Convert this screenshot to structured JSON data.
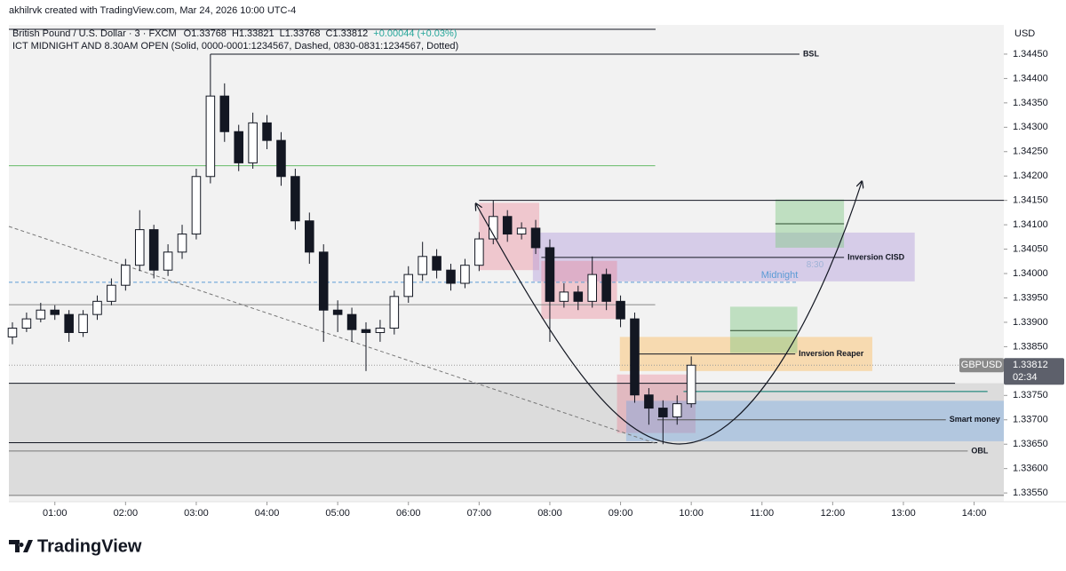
{
  "header": {
    "credit": "akhilrvk created with TradingView.com, Mar 24, 2026 10:00 UTC-4",
    "symbol": "British Pound / U.S. Dollar · 3 · FXCM",
    "ohlc": [
      "O1.33768",
      "H1.33821",
      "L1.33768",
      "C1.33812"
    ],
    "change": "+0.00044 (+0.03%)",
    "indicator": "ICT MIDNIGHT AND 8.30AM OPEN (Solid, 0000-0001:1234567, Dashed, 0830-0831:1234567, Dotted)"
  },
  "footer": {
    "brand": "TradingView"
  },
  "chart_data": {
    "type": "candlestick",
    "currency": "USD",
    "up_color": "#ffffff",
    "down_color": "#131722",
    "x": [
      0.4,
      0.6,
      0.8,
      1.0,
      1.2,
      1.4,
      1.6,
      1.8,
      2.0,
      2.2,
      2.4,
      2.6,
      2.8,
      3.0,
      3.2,
      3.4,
      3.6,
      3.8,
      4.0,
      4.2,
      4.4,
      4.6,
      4.8,
      5.0,
      5.2,
      5.4,
      5.6,
      5.8,
      6.0,
      6.2,
      6.4,
      6.6,
      6.8,
      7.0,
      7.2,
      7.4,
      7.6,
      7.8,
      8.0,
      8.2,
      8.4,
      8.6,
      8.8,
      9.0,
      9.2,
      9.4,
      9.6,
      9.8,
      10.0
    ],
    "open": [
      1.3387,
      1.33888,
      1.33907,
      1.33925,
      1.33916,
      1.33879,
      1.33916,
      1.33943,
      1.33976,
      1.34017,
      1.3409,
      1.34007,
      1.34044,
      1.34081,
      1.34199,
      1.34364,
      1.34291,
      1.34227,
      1.34309,
      1.34273,
      1.34199,
      1.34108,
      1.34044,
      1.33925,
      1.33916,
      1.33885,
      1.33879,
      1.33888,
      1.33953,
      1.33998,
      1.34035,
      1.34007,
      1.3398,
      1.34017,
      1.34071,
      1.34117,
      1.34081,
      1.34093,
      1.34053,
      1.33943,
      1.33962,
      1.33943,
      1.33998,
      1.33943,
      1.33907,
      1.33751,
      1.33724,
      1.33706,
      1.33733
    ],
    "high": [
      1.339,
      1.3392,
      1.3394,
      1.33935,
      1.33925,
      1.33925,
      1.33955,
      1.3399,
      1.3403,
      1.3413,
      1.341,
      1.3406,
      1.341,
      1.34215,
      1.3445,
      1.3439,
      1.34305,
      1.3433,
      1.34325,
      1.3429,
      1.34215,
      1.34125,
      1.3406,
      1.33945,
      1.3393,
      1.339,
      1.33905,
      1.33965,
      1.34015,
      1.34065,
      1.3405,
      1.3402,
      1.3403,
      1.34085,
      1.3415,
      1.3413,
      1.34105,
      1.3411,
      1.3407,
      1.3398,
      1.33975,
      1.34035,
      1.3401,
      1.33955,
      1.3392,
      1.33765,
      1.3374,
      1.3375,
      1.3383
    ],
    "low": [
      1.33855,
      1.3388,
      1.339,
      1.33905,
      1.3386,
      1.3387,
      1.33905,
      1.33935,
      1.33965,
      1.34005,
      1.3399,
      1.33995,
      1.3403,
      1.3407,
      1.34185,
      1.3427,
      1.3421,
      1.34215,
      1.34255,
      1.3418,
      1.3409,
      1.3402,
      1.3386,
      1.3388,
      1.3386,
      1.338,
      1.3386,
      1.33875,
      1.3394,
      1.33985,
      1.3399,
      1.33965,
      1.3397,
      1.34005,
      1.3406,
      1.34065,
      1.3407,
      1.3404,
      1.3386,
      1.3393,
      1.33925,
      1.3393,
      1.33925,
      1.3389,
      1.33735,
      1.3369,
      1.3365,
      1.3369,
      1.33725
    ],
    "close": [
      1.33888,
      1.33907,
      1.33925,
      1.33916,
      1.33879,
      1.33916,
      1.33943,
      1.33976,
      1.34017,
      1.3409,
      1.34007,
      1.34044,
      1.34081,
      1.34199,
      1.34364,
      1.34291,
      1.34227,
      1.34309,
      1.34273,
      1.34199,
      1.34108,
      1.34044,
      1.33925,
      1.33916,
      1.33885,
      1.33879,
      1.33888,
      1.33953,
      1.33998,
      1.34035,
      1.34007,
      1.3398,
      1.34017,
      1.34071,
      1.34117,
      1.34081,
      1.34093,
      1.34053,
      1.33943,
      1.33962,
      1.33943,
      1.33998,
      1.33943,
      1.33907,
      1.33751,
      1.33724,
      1.33706,
      1.33733,
      1.33812
    ],
    "xlim": [
      0.35,
      14.42
    ],
    "xticks": [
      {
        "value": 1,
        "label": "01:00"
      },
      {
        "value": 2,
        "label": "02:00"
      },
      {
        "value": 3,
        "label": "03:00"
      },
      {
        "value": 4,
        "label": "04:00"
      },
      {
        "value": 5,
        "label": "05:00"
      },
      {
        "value": 6,
        "label": "06:00"
      },
      {
        "value": 7,
        "label": "07:00"
      },
      {
        "value": 8,
        "label": "08:00"
      },
      {
        "value": 9,
        "label": "09:00"
      },
      {
        "value": 10,
        "label": "10:00"
      },
      {
        "value": 11,
        "label": "11:00"
      },
      {
        "value": 12,
        "label": "12:00"
      },
      {
        "value": 13,
        "label": "13:00"
      },
      {
        "value": 14,
        "label": "14:00"
      }
    ],
    "ylim": [
      1.33532,
      1.3451
    ],
    "yticks": [
      {
        "value": 1.3355,
        "label": "1.33550"
      },
      {
        "value": 1.336,
        "label": "1.33600"
      },
      {
        "value": 1.3365,
        "label": "1.33650"
      },
      {
        "value": 1.337,
        "label": "1.33700"
      },
      {
        "value": 1.3375,
        "label": "1.33750"
      },
      {
        "value": 1.338,
        "label": "1.33800"
      },
      {
        "value": 1.3385,
        "label": "1.33850"
      },
      {
        "value": 1.339,
        "label": "1.33900"
      },
      {
        "value": 1.3395,
        "label": "1.33950"
      },
      {
        "value": 1.34,
        "label": "1.34000"
      },
      {
        "value": 1.3405,
        "label": "1.34050"
      },
      {
        "value": 1.341,
        "label": "1.34100"
      },
      {
        "value": 1.3415,
        "label": "1.34150"
      },
      {
        "value": 1.342,
        "label": "1.34200"
      },
      {
        "value": 1.3425,
        "label": "1.34250"
      },
      {
        "value": 1.343,
        "label": "1.34300"
      },
      {
        "value": 1.3435,
        "label": "1.34350"
      },
      {
        "value": 1.344,
        "label": "1.34400"
      },
      {
        "value": 1.3445,
        "label": "1.34450"
      }
    ],
    "zones": [
      {
        "x": [
          0.35,
          14.42
        ],
        "y": [
          1.33545,
          1.33775
        ],
        "color": "rgba(180,180,180,0.35)"
      },
      {
        "x": [
          7.0,
          7.85
        ],
        "y": [
          1.34007,
          1.34145
        ],
        "color": "rgba(235,120,140,0.35)"
      },
      {
        "x": [
          7.76,
          13.16
        ],
        "y": [
          1.33984,
          1.34084
        ],
        "color": "rgba(179,157,219,0.45)"
      },
      {
        "x": [
          7.88,
          8.95
        ],
        "y": [
          1.33907,
          1.34026
        ],
        "color": "rgba(235,120,140,0.35)"
      },
      {
        "x": [
          8.99,
          12.56
        ],
        "y": [
          1.338,
          1.3387
        ],
        "color": "rgba(255,183,77,0.40)"
      },
      {
        "x": [
          8.95,
          10.06
        ],
        "y": [
          1.33673,
          1.33793
        ],
        "color": "rgba(235,120,140,0.35)"
      },
      {
        "x": [
          9.08,
          14.42
        ],
        "y": [
          1.33656,
          1.33739
        ],
        "color": "rgba(100,160,230,0.35)"
      },
      {
        "x": [
          11.19,
          12.16
        ],
        "y": [
          1.34053,
          1.34152
        ],
        "color": "rgba(129,199,132,0.45)"
      },
      {
        "x": [
          10.55,
          11.5
        ],
        "y": [
          1.33837,
          1.33932
        ],
        "color": "rgba(129,199,132,0.45)"
      }
    ],
    "levels": [
      {
        "price": 1.3445,
        "x": [
          3.2,
          11.53
        ],
        "color": "#131722",
        "label": "BSL"
      },
      {
        "price": 1.3415,
        "x": [
          7.0,
          14.42
        ],
        "color": "#131722"
      },
      {
        "price": 1.34221,
        "x": [
          0.35,
          9.49
        ],
        "color": "#66bb6a"
      },
      {
        "price": 1.34033,
        "x": [
          7.88,
          12.16
        ],
        "color": "#131722",
        "label": "Inversion CISD"
      },
      {
        "price": 1.33982,
        "x": [
          0.35,
          11.5
        ],
        "color": "#5b9bd5",
        "dash": "4 3",
        "label": "Midnight"
      },
      {
        "price": 1.33936,
        "x": [
          0.35,
          9.49
        ],
        "color": "#888888"
      },
      {
        "price": 1.33835,
        "x": [
          9.14,
          11.47
        ],
        "color": "#131722",
        "label": "Inversion Reaper"
      },
      {
        "price": 1.34102,
        "x": [
          11.19,
          12.16
        ],
        "color": "#2e4d2e"
      },
      {
        "price": 1.33883,
        "x": [
          10.55,
          11.5
        ],
        "color": "#2e4d2e"
      },
      {
        "price": 1.33812,
        "x": [
          0.35,
          14.42
        ],
        "color": "#999999",
        "dash": "1 2"
      },
      {
        "price": 1.33775,
        "x": [
          0.35,
          13.73
        ],
        "color": "#131722"
      },
      {
        "price": 1.33758,
        "x": [
          9.89,
          14.19
        ],
        "color": "#00796b"
      },
      {
        "price": 1.337,
        "x": [
          9.52,
          13.6
        ],
        "color": "#555555",
        "label": "Smart money"
      },
      {
        "price": 1.33653,
        "x": [
          0.35,
          9.52
        ],
        "color": "#131722"
      },
      {
        "price": 1.33636,
        "x": [
          0.35,
          13.91
        ],
        "color": "#777777",
        "label": "OBL"
      },
      {
        "price": 1.33545,
        "x": [
          0.35,
          14.42
        ],
        "color": "#777777"
      }
    ],
    "annotations": [
      {
        "text": "8:30",
        "x": 11.75,
        "price": 1.34018,
        "color": "#9fb3d6"
      }
    ],
    "last_price": {
      "name": "GBPUSD",
      "value": 1.33812,
      "label": "1.33812",
      "countdown": "02:34"
    }
  }
}
